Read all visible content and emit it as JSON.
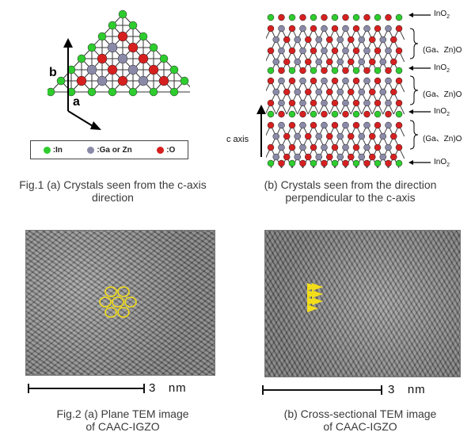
{
  "colors": {
    "indium": "#2ecc2e",
    "ga_zn": "#8a8aa8",
    "oxygen": "#d62020",
    "marker": "#f2dd1a"
  },
  "fig1": {
    "axis_b": "b",
    "axis_a": "a",
    "legend": {
      "in": ":In",
      "gazn": ":Ga or Zn",
      "o": ":O"
    },
    "caption_a_line1": "Fig.1 (a) Crystals seen from the c-axis",
    "caption_a_line2": "direction",
    "caption_b_line1": "(b) Crystals seen from the direction",
    "caption_b_line2": "perpendicular to the c-axis",
    "c_axis_label": "c axis",
    "layer_labels": {
      "ino2_main": "InO",
      "ino2_sub": "2",
      "gazno": "(Ga、Zn)O"
    }
  },
  "fig2": {
    "scale_a": "3   nm",
    "scale_b": "3   nm",
    "caption_a_line1": "Fig.2 (a) Plane TEM image",
    "caption_a_line2": "of CAAC-IGZO",
    "caption_b_line1": "(b) Cross-sectional TEM image",
    "caption_b_line2": "of CAAC-IGZO"
  }
}
